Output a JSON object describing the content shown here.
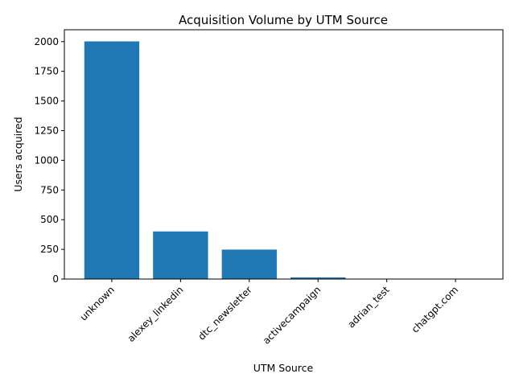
{
  "chart_data": {
    "type": "bar",
    "title": "Acquisition Volume by UTM Source",
    "xlabel": "UTM Source",
    "ylabel": "Users acquired",
    "categories": [
      "unknown",
      "alexey_linkedin",
      "dtc_newsletter",
      "activecampaign",
      "adrian_test",
      "chatgpt.com"
    ],
    "values": [
      2002,
      401,
      248,
      14,
      1,
      1
    ],
    "ylim": [
      0,
      2100
    ],
    "yticks": [
      0,
      250,
      500,
      750,
      1000,
      1250,
      1500,
      1750,
      2000
    ],
    "grid": false,
    "bar_color": "#1f77b4"
  }
}
